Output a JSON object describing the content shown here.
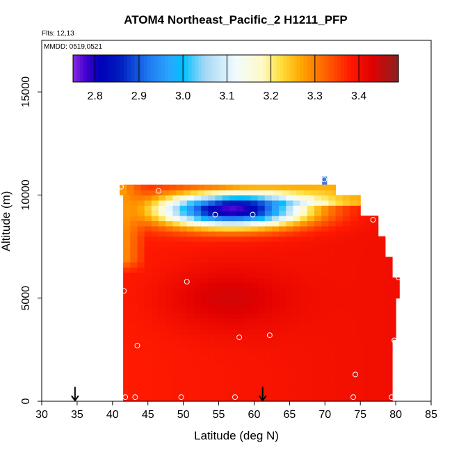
{
  "chart_data": {
    "type": "heatmap",
    "title": "ATOM4 Northeast_Pacific_2 H1211_PFP",
    "flights_note": "Flts: 12,13",
    "date_note": "MMDD: 0519,0521",
    "xlabel": "Latitude (deg N)",
    "ylabel": "Altitude (m)",
    "xlim": [
      30,
      85
    ],
    "ylim": [
      0,
      17500
    ],
    "x_ticks": [
      30,
      35,
      40,
      45,
      50,
      55,
      60,
      65,
      70,
      75,
      80,
      85
    ],
    "y_ticks": [
      0,
      5000,
      10000,
      15000
    ],
    "colorbar": {
      "range": [
        2.75,
        3.49
      ],
      "ticks": [
        2.8,
        2.9,
        3.0,
        3.1,
        3.2,
        3.3,
        3.4
      ],
      "tick_labels": [
        "2.8",
        "2.9",
        "3.0",
        "3.1",
        "3.2",
        "3.3",
        "3.4"
      ],
      "stops": [
        {
          "value": 2.75,
          "color": "#8a2be2"
        },
        {
          "value": 2.78,
          "color": "#4000d0"
        },
        {
          "value": 2.81,
          "color": "#0000b8"
        },
        {
          "value": 2.86,
          "color": "#0020c0"
        },
        {
          "value": 2.92,
          "color": "#1e78f0"
        },
        {
          "value": 2.97,
          "color": "#2aa6ff"
        },
        {
          "value": 3.0,
          "color": "#00bfff"
        },
        {
          "value": 3.05,
          "color": "#a6d8f5"
        },
        {
          "value": 3.12,
          "color": "#f2fbff"
        },
        {
          "value": 3.18,
          "color": "#fffac8"
        },
        {
          "value": 3.22,
          "color": "#ffe040"
        },
        {
          "value": 3.27,
          "color": "#ffa500"
        },
        {
          "value": 3.33,
          "color": "#ff5a00"
        },
        {
          "value": 3.38,
          "color": "#ff1a00"
        },
        {
          "value": 3.43,
          "color": "#e00000"
        },
        {
          "value": 3.49,
          "color": "#8b2222"
        }
      ]
    },
    "grid_bounds": {
      "lat_min": 41.5,
      "lat_max": 79.5,
      "alt_min": 0,
      "alt_max": 10000
    },
    "layer_extents": [
      {
        "alt_lo": 10000,
        "alt_hi": 10500,
        "lat_lo": 41,
        "lat_hi": 71.5
      },
      {
        "alt_lo": 9000,
        "alt_hi": 10000,
        "lat_lo": 41.5,
        "lat_hi": 75
      },
      {
        "alt_lo": 8000,
        "alt_hi": 9000,
        "lat_lo": 41.5,
        "lat_hi": 77.5
      },
      {
        "alt_lo": 7000,
        "alt_hi": 8000,
        "lat_lo": 41.5,
        "lat_hi": 78.5
      },
      {
        "alt_lo": 6000,
        "alt_hi": 7000,
        "lat_lo": 41.5,
        "lat_hi": 79.5
      },
      {
        "alt_lo": 5000,
        "alt_hi": 6000,
        "lat_lo": 41.5,
        "lat_hi": 80.5
      },
      {
        "alt_lo": 3000,
        "alt_hi": 5000,
        "lat_lo": 41.5,
        "lat_hi": 80
      },
      {
        "alt_lo": 0,
        "alt_hi": 3000,
        "lat_lo": 41.5,
        "lat_hi": 79.5
      }
    ],
    "field_description": "values ~3.36-3.44 at low altitude, maximum ~3.46 near 55N 5000m, minimum ~2.78 near 57N 9200m, 3.1-3.25 transition band around the upper low",
    "sample_points": [
      {
        "lat": 41.2,
        "alt": 10400
      },
      {
        "lat": 46.5,
        "alt": 10200
      },
      {
        "lat": 54.5,
        "alt": 9050
      },
      {
        "lat": 59.8,
        "alt": 9050
      },
      {
        "lat": 69.9,
        "alt": 10750
      },
      {
        "lat": 76.8,
        "alt": 8800
      },
      {
        "lat": 80.4,
        "alt": 6000
      },
      {
        "lat": 41.6,
        "alt": 5350
      },
      {
        "lat": 50.5,
        "alt": 5800
      },
      {
        "lat": 43.5,
        "alt": 2700
      },
      {
        "lat": 57.9,
        "alt": 3100
      },
      {
        "lat": 62.2,
        "alt": 3200
      },
      {
        "lat": 79.8,
        "alt": 2950
      },
      {
        "lat": 74.3,
        "alt": 1300
      },
      {
        "lat": 41.8,
        "alt": 200
      },
      {
        "lat": 43.2,
        "alt": 200
      },
      {
        "lat": 49.7,
        "alt": 200
      },
      {
        "lat": 57.3,
        "alt": 200
      },
      {
        "lat": 74.0,
        "alt": 200
      },
      {
        "lat": 79.4,
        "alt": 200
      }
    ],
    "arrows": [
      {
        "lat": 34.7,
        "alt": 700
      },
      {
        "lat": 61.2,
        "alt": 700
      }
    ]
  }
}
